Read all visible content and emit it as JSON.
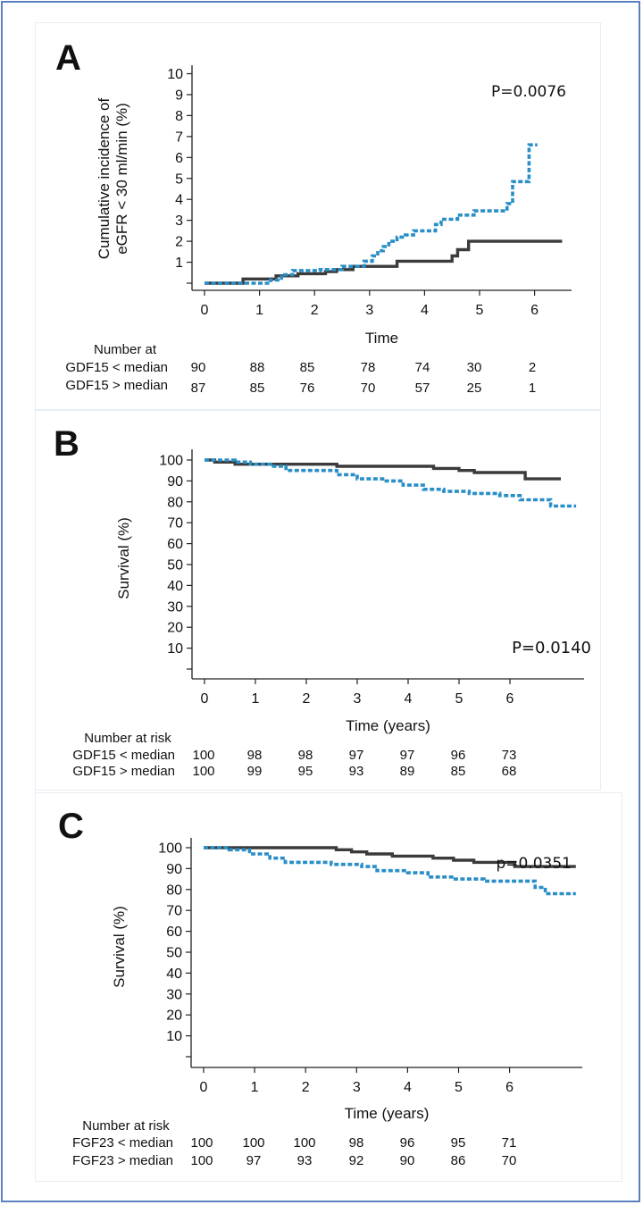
{
  "figure": {
    "colors": {
      "low_group": "#3b3b3b",
      "high_group": "#2a8fc6",
      "frame": "#5b7fbf"
    }
  },
  "chart_data": [
    {
      "panel": "A",
      "type": "line",
      "title": "",
      "xlabel": "Time",
      "ylabel": [
        "Cumulative incidence of",
        "eGFR < 30 ml/min (%)"
      ],
      "xticks": [
        "0",
        "1",
        "2",
        "3",
        "4",
        "5",
        "6"
      ],
      "yticks": [
        "1",
        "2",
        "3",
        "4",
        "5",
        "6",
        "7",
        "8",
        "9",
        "10"
      ],
      "xlim": [
        0,
        6.5
      ],
      "ylim": [
        0,
        10
      ],
      "pvalue": "P=0.0076",
      "series": [
        {
          "name": "GDF15 < median",
          "style": "solid",
          "x": [
            0,
            0.7,
            0.7,
            1.3,
            1.3,
            1.7,
            1.7,
            2.2,
            2.2,
            2.4,
            2.4,
            2.7,
            2.7,
            3.5,
            3.5,
            4.5,
            4.5,
            4.6,
            4.6,
            4.8,
            4.8,
            6.5
          ],
          "y": [
            0,
            0,
            0.2,
            0.2,
            0.35,
            0.35,
            0.45,
            0.45,
            0.55,
            0.55,
            0.65,
            0.65,
            0.8,
            0.8,
            1.05,
            1.05,
            1.3,
            1.3,
            1.6,
            1.6,
            2.0,
            2.0
          ]
        },
        {
          "name": "GDF15 > median",
          "style": "dashed",
          "x": [
            0,
            1.2,
            1.2,
            1.4,
            1.4,
            1.6,
            1.6,
            2.1,
            2.1,
            2.5,
            2.5,
            2.9,
            2.9,
            3.05,
            3.05,
            3.15,
            3.15,
            3.25,
            3.25,
            3.35,
            3.35,
            3.5,
            3.5,
            3.65,
            3.65,
            3.8,
            3.8,
            4.2,
            4.2,
            4.3,
            4.3,
            4.6,
            4.6,
            4.9,
            4.9,
            5.5,
            5.5,
            5.6,
            5.6,
            5.9,
            5.9,
            6.05
          ],
          "y": [
            0,
            0,
            0.15,
            0.15,
            0.4,
            0.4,
            0.6,
            0.6,
            0.65,
            0.65,
            0.8,
            0.8,
            1.05,
            1.05,
            1.3,
            1.3,
            1.55,
            1.55,
            1.75,
            1.75,
            2.0,
            2.0,
            2.2,
            2.2,
            2.3,
            2.3,
            2.5,
            2.5,
            2.8,
            2.8,
            3.05,
            3.05,
            3.25,
            3.25,
            3.45,
            3.45,
            3.8,
            3.8,
            4.85,
            4.85,
            6.6,
            6.6
          ]
        }
      ],
      "risk_table": {
        "title": "Number at",
        "rows": [
          {
            "label": "GDF15 < median",
            "values": [
              "90",
              "88",
              "85",
              "78",
              "74",
              "30",
              "2"
            ]
          },
          {
            "label": "GDF15 > median",
            "values": [
              "87",
              "85",
              "76",
              "70",
              "57",
              "25",
              "1"
            ]
          }
        ]
      }
    },
    {
      "panel": "B",
      "type": "line",
      "title": "",
      "xlabel": "Time (years)",
      "ylabel": [
        "Survival (%)"
      ],
      "xticks": [
        "0",
        "1",
        "2",
        "3",
        "4",
        "5",
        "6"
      ],
      "yticks": [
        "",
        "10",
        "20",
        "30",
        "40",
        "50",
        "60",
        "70",
        "80",
        "90",
        "100"
      ],
      "xlim": [
        0,
        7.3
      ],
      "ylim": [
        0,
        100
      ],
      "pvalue": "P=0.0140",
      "series": [
        {
          "name": "GDF15 < median",
          "style": "solid",
          "x": [
            0,
            0.2,
            0.2,
            0.6,
            0.6,
            1.2,
            1.2,
            2.6,
            2.6,
            4.5,
            4.5,
            5.0,
            5.0,
            5.3,
            5.3,
            6.3,
            6.3,
            7.0
          ],
          "y": [
            100,
            100,
            99,
            99,
            98,
            98,
            98,
            98,
            97,
            97,
            96,
            96,
            95,
            95,
            94,
            94,
            91,
            91
          ]
        },
        {
          "name": "GDF15 > median",
          "style": "dashed",
          "x": [
            0,
            0.6,
            0.6,
            0.9,
            0.9,
            1.3,
            1.3,
            1.6,
            1.6,
            2.6,
            2.6,
            3.0,
            3.0,
            3.5,
            3.5,
            3.9,
            3.9,
            4.3,
            4.3,
            4.7,
            4.7,
            5.2,
            5.2,
            5.8,
            5.8,
            6.2,
            6.2,
            6.8,
            6.8,
            7.3
          ],
          "y": [
            100,
            100,
            99,
            99,
            98,
            98,
            97,
            97,
            95,
            95,
            93,
            93,
            91,
            91,
            90,
            90,
            88,
            88,
            86,
            86,
            85,
            85,
            84,
            84,
            83,
            83,
            81,
            81,
            78,
            78
          ]
        }
      ],
      "risk_table": {
        "title": "Number at risk",
        "rows": [
          {
            "label": "GDF15 < median",
            "values": [
              "100",
              "98",
              "98",
              "97",
              "97",
              "96",
              "73"
            ]
          },
          {
            "label": "GDF15 > median",
            "values": [
              "100",
              "99",
              "95",
              "93",
              "89",
              "85",
              "68"
            ]
          }
        ]
      }
    },
    {
      "panel": "C",
      "type": "line",
      "title": "",
      "xlabel": "Time (years)",
      "ylabel": [
        "Survival (%)"
      ],
      "xticks": [
        "0",
        "1",
        "2",
        "3",
        "4",
        "5",
        "6"
      ],
      "yticks": [
        "",
        "10",
        "20",
        "30",
        "40",
        "50",
        "60",
        "70",
        "80",
        "90",
        "100"
      ],
      "xlim": [
        0,
        7.3
      ],
      "ylim": [
        0,
        100
      ],
      "pvalue": "p=0.0351",
      "series": [
        {
          "name": "FGF23 < median",
          "style": "solid",
          "x": [
            0,
            2.6,
            2.6,
            2.9,
            2.9,
            3.2,
            3.2,
            3.7,
            3.7,
            4.5,
            4.5,
            4.9,
            4.9,
            5.3,
            5.3,
            6.1,
            6.1,
            7.3
          ],
          "y": [
            100,
            100,
            99,
            99,
            98,
            98,
            97,
            97,
            96,
            96,
            95,
            95,
            94,
            94,
            93,
            93,
            91,
            91
          ]
        },
        {
          "name": "FGF23 > median",
          "style": "dashed",
          "x": [
            0,
            0.5,
            0.5,
            0.9,
            0.9,
            1.3,
            1.3,
            1.6,
            1.6,
            2.5,
            2.5,
            3.1,
            3.1,
            3.4,
            3.4,
            4.0,
            4.0,
            4.4,
            4.4,
            4.9,
            4.9,
            5.5,
            5.5,
            6.5,
            6.5,
            6.7,
            6.7,
            7.3
          ],
          "y": [
            100,
            100,
            99,
            99,
            97,
            97,
            95,
            95,
            93,
            93,
            92,
            92,
            91,
            91,
            89,
            89,
            88,
            88,
            86,
            86,
            85,
            85,
            84,
            84,
            81,
            81,
            78,
            78
          ]
        }
      ],
      "risk_table": {
        "title": "Number at risk",
        "rows": [
          {
            "label": "FGF23 < median",
            "values": [
              "100",
              "100",
              "100",
              "98",
              "96",
              "95",
              "71"
            ]
          },
          {
            "label": "FGF23 > median",
            "values": [
              "100",
              "97",
              "93",
              "92",
              "90",
              "86",
              "70"
            ]
          }
        ]
      }
    }
  ]
}
